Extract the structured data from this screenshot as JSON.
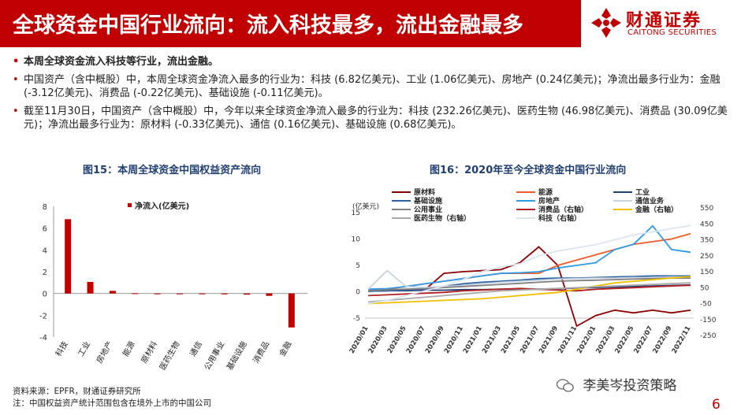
{
  "header": {
    "title": "全球资金中国行业流向：流入科技最多，流出金融最多",
    "logo_cn": "财通证券",
    "logo_en": "CAITONG SECURITIES"
  },
  "bullets": [
    "本周全球资金流入科技等行业，流出金融。",
    "中国资产（含中概股）中，本周全球资金净流入最多的行业为：科技 (6.82亿美元)、工业 (1.06亿美元)、房地产 (0.24亿美元)；净流出最多行业为：金融 (-3.12亿美元)、消费品 (-0.22亿美元)、基础设施 (-0.11亿美元)。",
    "截至11月30日，中国资产（含中概股）中，今年以来全球资金净流入最多的行业为：科技 (232.26亿美元)、医药生物 (46.98亿美元)、消费品 (30.09亿美元)；净流出最多行业为：原材料 (-0.33亿美元)、通信 (0.16亿美元)、基础设施 (0.68亿美元)。"
  ],
  "chart_data": [
    {
      "type": "bar",
      "title": "图15：本周全球资金中国权益资产流向",
      "legend": "净流入(亿美元)",
      "categories": [
        "科技",
        "工业",
        "房地产",
        "能源",
        "原材料",
        "医药生物",
        "通信",
        "公用事业",
        "基础设施",
        "消费品",
        "金融"
      ],
      "values": [
        6.82,
        1.06,
        0.24,
        0.02,
        -0.02,
        -0.03,
        -0.05,
        -0.08,
        -0.11,
        -0.22,
        -3.12
      ],
      "yticks": [
        -4,
        -2,
        0,
        2,
        4,
        6,
        8
      ],
      "ylim": [
        -4,
        8
      ],
      "color": "#c00000"
    },
    {
      "type": "line",
      "title": "图16：2020年至今全球资金中国行业流向",
      "ylabel": "(亿美元)",
      "left_ticks": [
        -5,
        0,
        5,
        10,
        15
      ],
      "right_ticks": [
        -250,
        -150,
        -50,
        50,
        150,
        250,
        350,
        450,
        550
      ],
      "x_labels": [
        "2020/01",
        "2020/03",
        "2020/05",
        "2020/07",
        "2020/09",
        "2020/11",
        "2021/01",
        "2021/03",
        "2021/05",
        "2021/07",
        "2021/09",
        "2021/11",
        "2022/01",
        "2022/03",
        "2022/05",
        "2022/07",
        "2022/09",
        "2022/11"
      ],
      "series": [
        {
          "name": "原材料",
          "color": "#8b0000",
          "axis": "left",
          "values": [
            0.2,
            0.3,
            0.3,
            0.4,
            3.5,
            3.8,
            4,
            4.2,
            5.5,
            8.5,
            5,
            -6.5,
            -4.5,
            -3.5,
            -4,
            -3.5,
            -4,
            -3.5
          ]
        },
        {
          "name": "能源",
          "color": "#f05a28",
          "axis": "left",
          "values": [
            0.3,
            0.5,
            1,
            1.5,
            2,
            2.5,
            3,
            3.5,
            3.5,
            3.5,
            5,
            6,
            7,
            8,
            9,
            9.5,
            10,
            11
          ]
        },
        {
          "name": "工业",
          "color": "#1f3f73",
          "axis": "left",
          "values": [
            0.1,
            0.2,
            0.2,
            0.3,
            0.3,
            0.4,
            0.4,
            0.5,
            0.5,
            0.5,
            0.6,
            0.7,
            0.8,
            0.9,
            1,
            1.1,
            1.2,
            1.3
          ]
        },
        {
          "name": "基础设施",
          "color": "#2a5fa0",
          "axis": "left",
          "values": [
            0.1,
            0.2,
            0.3,
            0.5,
            1,
            1.5,
            1.8,
            2,
            2.2,
            2.5,
            2.6,
            2.6,
            2.7,
            2.8,
            2.9,
            3,
            3,
            3
          ]
        },
        {
          "name": "房地产",
          "color": "#2e9be6",
          "axis": "left",
          "values": [
            0.5,
            0.6,
            1,
            1.5,
            2,
            2.5,
            3,
            3.5,
            3.6,
            3.8,
            4.5,
            5,
            5.5,
            8,
            9,
            12.5,
            8,
            7.5
          ]
        },
        {
          "name": "通信业务",
          "color": "#c8d3e0",
          "axis": "left",
          "values": [
            0.5,
            4,
            1,
            0.8,
            1,
            1.2,
            1.5,
            1.8,
            2,
            2.2,
            2.4,
            2.5,
            2.6,
            2.6,
            2.7,
            2.7,
            2.8,
            2.8
          ]
        },
        {
          "name": "公用事业",
          "color": "#808080",
          "axis": "left",
          "values": [
            0.2,
            0.4,
            0.5,
            0.6,
            0.8,
            1,
            1.2,
            1.4,
            1.6,
            1.8,
            2,
            2.1,
            2.2,
            2.3,
            2.4,
            2.5,
            2.6,
            2.6
          ]
        },
        {
          "name": "消费品（右轴）",
          "color": "#b22222",
          "axis": "right",
          "values": [
            0,
            5,
            10,
            15,
            20,
            30,
            35,
            40,
            45,
            40,
            35,
            30,
            40,
            45,
            50,
            55,
            60,
            65
          ]
        },
        {
          "name": "金融（右轴）",
          "color": "#f0c000",
          "axis": "right",
          "values": [
            -50,
            -45,
            -40,
            -35,
            -30,
            -25,
            -20,
            -10,
            0,
            10,
            20,
            40,
            60,
            80,
            90,
            100,
            110,
            120
          ]
        },
        {
          "name": "医药生物（右轴）",
          "color": "#a9a9a9",
          "axis": "right",
          "values": [
            -40,
            -30,
            -20,
            -10,
            0,
            10,
            20,
            30,
            35,
            40,
            45,
            50,
            55,
            60,
            65,
            70,
            75,
            80
          ]
        },
        {
          "name": "科技（右轴）",
          "color": "#dbe5f1",
          "axis": "right",
          "values": [
            -50,
            -30,
            0,
            30,
            60,
            100,
            150,
            180,
            200,
            250,
            280,
            300,
            320,
            350,
            380,
            400,
            420,
            440
          ]
        }
      ]
    }
  ],
  "footer": {
    "source": "资料来源：EPFR，财通证券研究所",
    "note": "注：中国权益资产统计范围包含在境外上市的中国公司"
  },
  "watermark": "李美岑投资策略",
  "page_number": "6"
}
